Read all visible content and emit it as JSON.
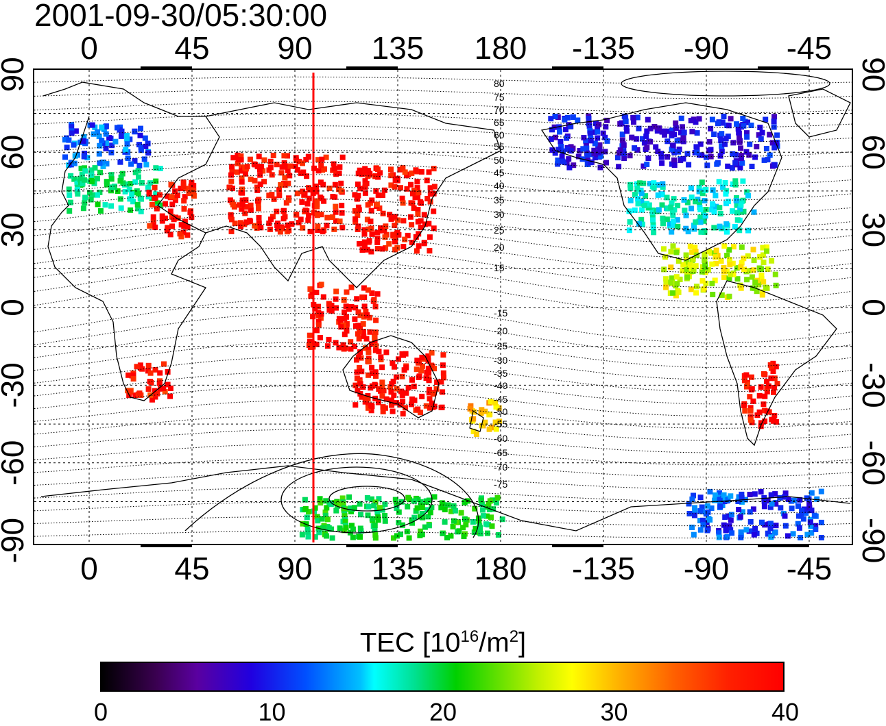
{
  "timestamp": "2001-09-30/05:30:00",
  "map": {
    "projection": "equirectangular",
    "lon_center_label_sequence": [
      "0",
      "45",
      "90",
      "135",
      "180",
      "-135",
      "-90",
      "-45"
    ],
    "lat_labels": [
      "90",
      "60",
      "30",
      "0",
      "-30",
      "-60",
      "-90"
    ],
    "longitude_marker": {
      "lon": 98,
      "color": "#ff0000"
    },
    "contour_labels": [
      "80",
      "75",
      "70",
      "65",
      "60",
      "55",
      "50",
      "45",
      "40",
      "35",
      "30",
      "25",
      "20",
      "15",
      "-15",
      "-20",
      "-25",
      "-30",
      "-35",
      "-40",
      "-45",
      "-50",
      "-55",
      "-60",
      "-65",
      "-70",
      "-75"
    ]
  },
  "colorbar": {
    "title_prefix": "TEC  [10",
    "title_exp1": "16",
    "title_mid": "/m",
    "title_exp2": "2",
    "title_suffix": "]",
    "ticks": [
      "0",
      "10",
      "20",
      "30",
      "40"
    ],
    "min": 0,
    "max": 40
  },
  "tec_regions": [
    {
      "name": "europe-north",
      "lon": [
        -12,
        25
      ],
      "lat": [
        55,
        72
      ],
      "tec": 12
    },
    {
      "name": "europe-central",
      "lon": [
        -10,
        30
      ],
      "lat": [
        38,
        55
      ],
      "tec": 20
    },
    {
      "name": "east-europe",
      "lon": [
        25,
        45
      ],
      "lat": [
        28,
        50
      ],
      "tec": 40
    },
    {
      "name": "asia-central",
      "lon": [
        60,
        110
      ],
      "lat": [
        30,
        60
      ],
      "tec": 40
    },
    {
      "name": "east-asia",
      "lon": [
        115,
        150
      ],
      "lat": [
        22,
        55
      ],
      "tec": 40
    },
    {
      "name": "southeast-asia",
      "lon": [
        95,
        125
      ],
      "lat": [
        -15,
        10
      ],
      "tec": 40
    },
    {
      "name": "australia",
      "lon": [
        115,
        155
      ],
      "lat": [
        -40,
        -15
      ],
      "tec": 40
    },
    {
      "name": "south-africa",
      "lon": [
        15,
        35
      ],
      "lat": [
        -35,
        -20
      ],
      "tec": 39
    },
    {
      "name": "north-america-north",
      "lon": [
        -160,
        -60
      ],
      "lat": [
        55,
        75
      ],
      "tec": 9
    },
    {
      "name": "north-america",
      "lon": [
        -125,
        -70
      ],
      "lat": [
        30,
        50
      ],
      "tec": 17
    },
    {
      "name": "central-america",
      "lon": [
        -110,
        -60
      ],
      "lat": [
        5,
        25
      ],
      "tec": 28
    },
    {
      "name": "south-america",
      "lon": [
        -75,
        -60
      ],
      "lat": [
        -45,
        -20
      ],
      "tec": 40
    },
    {
      "name": "new-zealand",
      "lon": [
        165,
        180
      ],
      "lat": [
        -48,
        -35
      ],
      "tec": 32
    },
    {
      "name": "antarctica-east",
      "lon": [
        90,
        180
      ],
      "lat": [
        -88,
        -72
      ],
      "tec": 22
    },
    {
      "name": "antarctica-west",
      "lon": [
        -100,
        -40
      ],
      "lat": [
        -88,
        -70
      ],
      "tec": 11
    }
  ]
}
